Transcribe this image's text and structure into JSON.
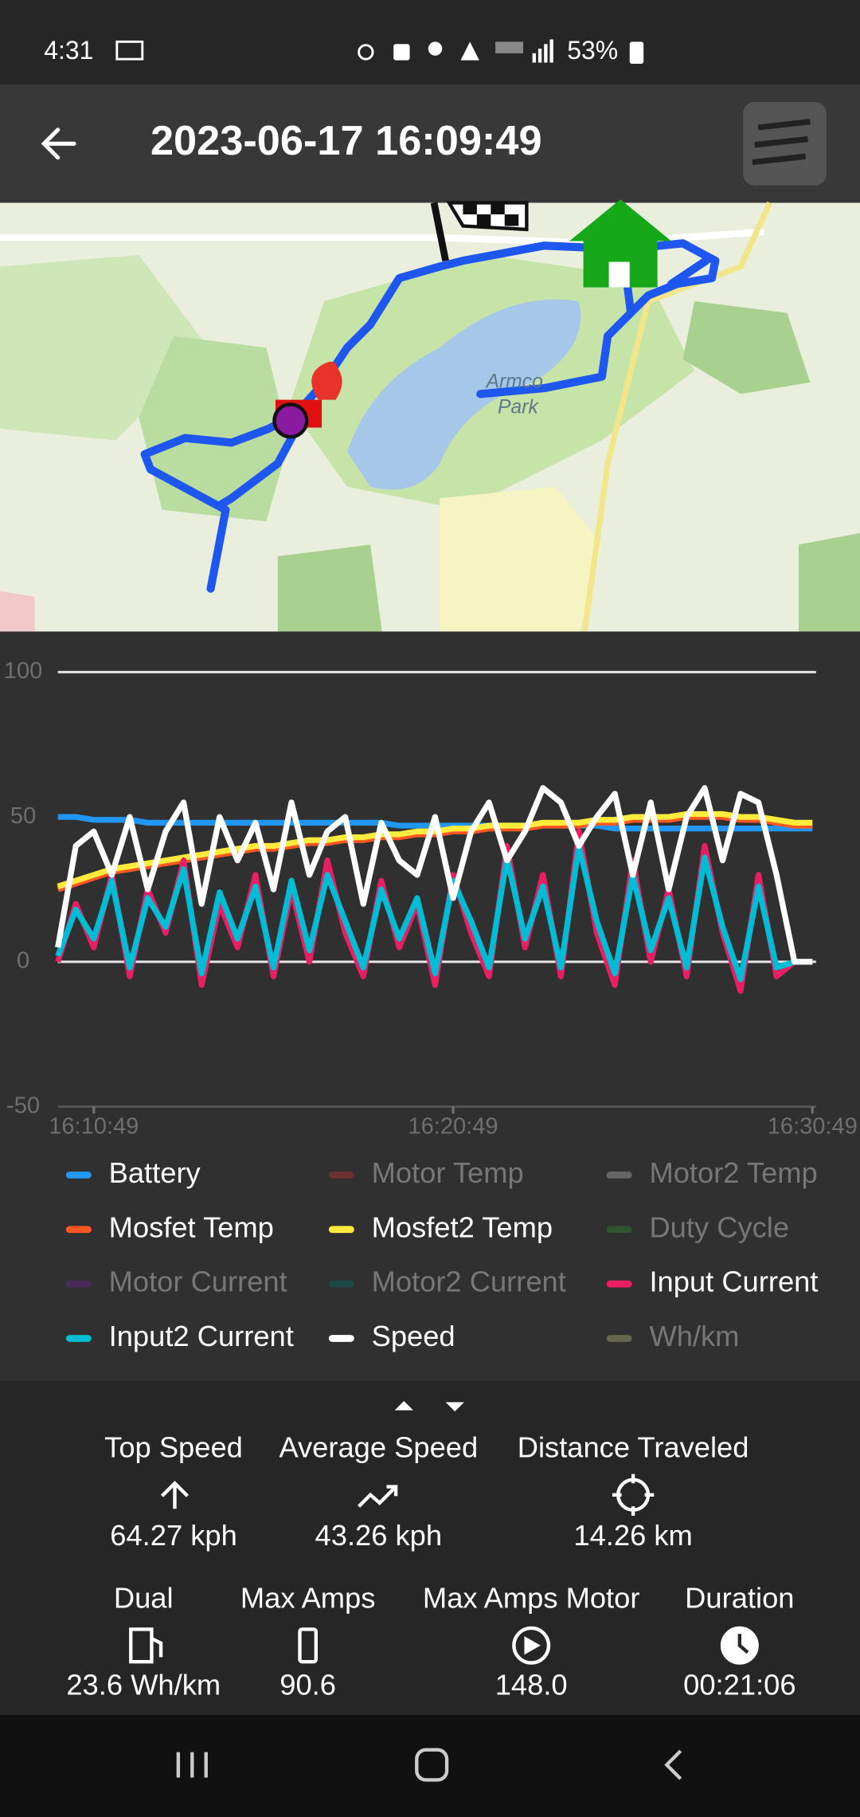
{
  "status_bar": {
    "time": "4:31",
    "battery": "53%"
  },
  "header": {
    "title": "2023-06-17 16:09:49"
  },
  "map": {
    "labels": [
      "Armco",
      "Park"
    ]
  },
  "chart_data": {
    "type": "line",
    "x": [
      "16:09:49",
      "16:10:19",
      "16:10:49",
      "16:11:19",
      "16:11:49",
      "16:12:19",
      "16:12:49",
      "16:13:19",
      "16:13:49",
      "16:14:19",
      "16:14:49",
      "16:15:19",
      "16:15:49",
      "16:16:19",
      "16:16:49",
      "16:17:19",
      "16:17:49",
      "16:18:19",
      "16:18:49",
      "16:19:19",
      "16:19:49",
      "16:20:19",
      "16:20:49",
      "16:21:19",
      "16:21:49",
      "16:22:19",
      "16:22:49",
      "16:23:19",
      "16:23:49",
      "16:24:19",
      "16:24:49",
      "16:25:19",
      "16:25:49",
      "16:26:19",
      "16:26:49",
      "16:27:19",
      "16:27:49",
      "16:28:19",
      "16:28:49",
      "16:29:19",
      "16:29:49",
      "16:30:19",
      "16:30:49"
    ],
    "xlim": [
      "16:09:49",
      "16:30:55"
    ],
    "xticks": [
      "16:10:49",
      "16:20:49",
      "16:30:49"
    ],
    "ylim": [
      -50,
      100
    ],
    "yticks": [
      -50,
      0,
      50,
      100
    ],
    "grid": true,
    "series": [
      {
        "name": "Battery",
        "color": "#2196f3",
        "visible": true,
        "values": [
          50,
          50,
          49,
          49,
          49,
          48,
          48,
          48,
          48,
          48,
          48,
          48,
          48,
          48,
          48,
          48,
          48,
          48,
          48,
          47,
          47,
          47,
          47,
          47,
          47,
          47,
          47,
          47,
          47,
          47,
          47,
          46,
          46,
          46,
          46,
          46,
          46,
          46,
          46,
          46,
          46,
          46,
          46
        ]
      },
      {
        "name": "Motor Temp",
        "color": "#6b3030",
        "visible": false
      },
      {
        "name": "Motor2 Temp",
        "color": "#666666",
        "visible": false
      },
      {
        "name": "Mosfet Temp",
        "color": "#ff5722",
        "visible": true,
        "values": [
          25,
          27,
          29,
          31,
          32,
          33,
          34,
          35,
          36,
          37,
          38,
          39,
          39,
          40,
          41,
          41,
          42,
          42,
          43,
          43,
          44,
          44,
          45,
          45,
          46,
          46,
          46,
          47,
          47,
          47,
          48,
          48,
          49,
          49,
          49,
          50,
          50,
          50,
          49,
          49,
          48,
          47,
          47
        ]
      },
      {
        "name": "Mosfet2 Temp",
        "color": "#ffeb3b",
        "visible": true,
        "values": [
          26,
          28,
          30,
          32,
          33,
          34,
          35,
          36,
          37,
          38,
          39,
          40,
          40,
          41,
          42,
          42,
          43,
          43,
          44,
          44,
          45,
          45,
          46,
          46,
          47,
          47,
          47,
          48,
          48,
          48,
          49,
          49,
          50,
          50,
          50,
          51,
          51,
          51,
          50,
          50,
          49,
          48,
          48
        ]
      },
      {
        "name": "Duty Cycle",
        "color": "#2e552e",
        "visible": false
      },
      {
        "name": "Motor Current",
        "color": "#4a2a58",
        "visible": false
      },
      {
        "name": "Motor2 Current",
        "color": "#1d4844",
        "visible": false
      },
      {
        "name": "Input Current",
        "color": "#e91e63",
        "visible": true,
        "values": [
          0,
          20,
          5,
          30,
          -5,
          25,
          10,
          35,
          -8,
          20,
          5,
          30,
          -5,
          25,
          0,
          35,
          10,
          -5,
          28,
          5,
          20,
          -8,
          30,
          10,
          -5,
          40,
          5,
          30,
          -5,
          45,
          10,
          -8,
          35,
          0,
          25,
          -5,
          40,
          10,
          -10,
          30,
          -5,
          0,
          0
        ]
      },
      {
        "name": "Input2 Current",
        "color": "#00bcd4",
        "visible": true,
        "values": [
          2,
          18,
          8,
          28,
          -2,
          22,
          12,
          32,
          -4,
          24,
          8,
          26,
          -2,
          28,
          4,
          30,
          14,
          -2,
          25,
          8,
          22,
          -4,
          28,
          14,
          -2,
          36,
          8,
          26,
          -2,
          40,
          14,
          -4,
          30,
          4,
          22,
          -2,
          36,
          12,
          -6,
          26,
          -2,
          0,
          0
        ]
      },
      {
        "name": "Speed",
        "color": "#ffffff",
        "visible": true,
        "values": [
          5,
          40,
          45,
          30,
          50,
          25,
          45,
          55,
          20,
          50,
          35,
          48,
          25,
          55,
          30,
          45,
          50,
          20,
          48,
          35,
          30,
          50,
          22,
          45,
          55,
          35,
          45,
          60,
          55,
          40,
          50,
          58,
          30,
          55,
          25,
          50,
          60,
          35,
          58,
          55,
          30,
          0,
          0
        ]
      },
      {
        "name": "Wh/km",
        "color": "#66664a",
        "visible": false
      }
    ]
  },
  "stats": {
    "rows": [
      [
        {
          "label": "Top Speed",
          "value": "64.27 kph"
        },
        {
          "label": "Average Speed",
          "value": "43.26 kph"
        },
        {
          "label": "Distance Traveled",
          "value": "14.26 km"
        }
      ],
      [
        {
          "label": "Dual",
          "value": "23.6 Wh/km"
        },
        {
          "label": "Max Amps",
          "value": "90.6"
        },
        {
          "label": "Max Amps Motor",
          "value": "148.0"
        },
        {
          "label": "Duration",
          "value": "00:21:06"
        }
      ]
    ]
  }
}
